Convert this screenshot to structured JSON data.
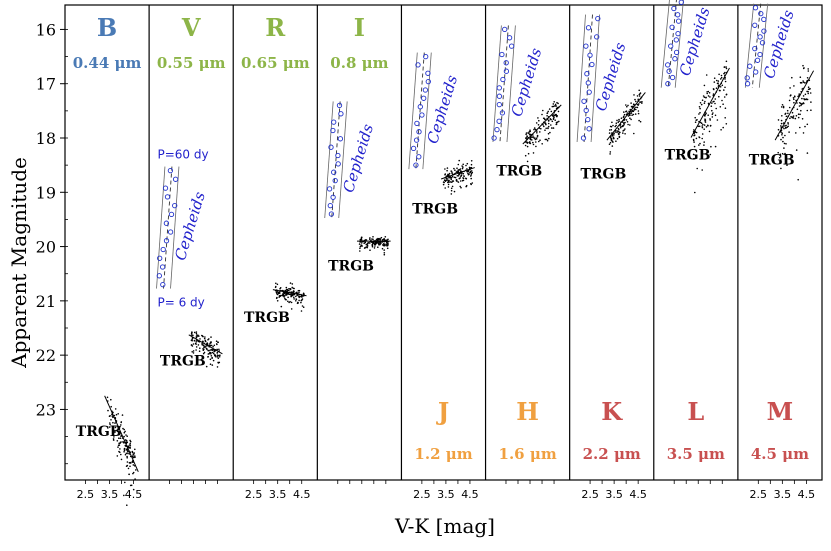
{
  "chart_data": {
    "type": "scatter",
    "ylabel": "Apparent Magnitude",
    "xlabel": "V-K [mag]",
    "y_axis_inverted": true,
    "ylim": [
      15.55,
      24.3
    ],
    "yticks": [
      16,
      17,
      18,
      19,
      20,
      21,
      22,
      23
    ],
    "xticks": [
      "2.5",
      "3.5",
      "4.5"
    ],
    "xlim": [
      1.9,
      4.9
    ],
    "panels": [
      {
        "band": "B",
        "wavelength": "0.44 μm",
        "label_pos": "top",
        "color": "#4a7ab5",
        "trgb": {
          "label": "TRGB",
          "mag": 23.45,
          "color_range": [
            3.4,
            4.6
          ],
          "tilt": 1.0,
          "scatter": 0.16
        },
        "trgb_label_mag": 23.4
      },
      {
        "band": "V",
        "wavelength": "0.55 μm",
        "label_pos": "top",
        "color": "#8db548",
        "trgb": {
          "label": "TRGB",
          "mag": 21.8,
          "color_range": [
            3.4,
            4.6
          ],
          "tilt": 0.25,
          "scatter": 0.08
        },
        "trgb_label_mag": 22.1,
        "cepheids": {
          "label": "Cepheids",
          "mag_bright": 18.6,
          "mag_faint": 20.7,
          "period_long": "P=60 dy",
          "period_short": "P= 6 dy"
        }
      },
      {
        "band": "R",
        "wavelength": "0.65 μm",
        "label_pos": "top",
        "color": "#8db548",
        "trgb": {
          "label": "TRGB",
          "mag": 20.85,
          "color_range": [
            3.4,
            4.6
          ],
          "tilt": 0.08,
          "scatter": 0.06
        },
        "trgb_label_mag": 21.3
      },
      {
        "band": "I",
        "wavelength": "0.8 μm",
        "label_pos": "top",
        "color": "#8db548",
        "trgb": {
          "label": "TRGB",
          "mag": 19.9,
          "color_range": [
            3.4,
            4.6
          ],
          "tilt": 0.0,
          "scatter": 0.04
        },
        "trgb_label_mag": 20.35,
        "cepheids": {
          "label": "Cepheids",
          "mag_bright": 17.4,
          "mag_faint": 19.4
        }
      },
      {
        "band": "J",
        "wavelength": "1.2 μm",
        "label_pos": "bottom",
        "color": "#f0a040",
        "trgb": {
          "label": "TRGB",
          "mag": 18.65,
          "color_range": [
            3.4,
            4.6
          ],
          "tilt": -0.15,
          "scatter": 0.08
        },
        "trgb_label_mag": 19.3,
        "cepheids": {
          "label": "Cepheids",
          "mag_bright": 16.5,
          "mag_faint": 18.5
        }
      },
      {
        "band": "H",
        "wavelength": "1.6 μm",
        "label_pos": "bottom",
        "color": "#f0a040",
        "trgb": {
          "label": "TRGB",
          "mag": 17.75,
          "color_range": [
            3.3,
            4.7
          ],
          "tilt": -0.45,
          "scatter": 0.1
        },
        "trgb_label_mag": 18.6,
        "cepheids": {
          "label": "Cepheids",
          "mag_bright": 16.0,
          "mag_faint": 18.0
        }
      },
      {
        "band": "K",
        "wavelength": "2.2 μm",
        "label_pos": "bottom",
        "color": "#c85050",
        "trgb": {
          "label": "TRGB",
          "mag": 17.6,
          "color_range": [
            3.3,
            4.7
          ],
          "tilt": -0.55,
          "scatter": 0.1
        },
        "trgb_label_mag": 18.65,
        "cepheids": {
          "label": "Cepheids",
          "mag_bright": 15.8,
          "mag_faint": 18.0
        }
      },
      {
        "band": "L",
        "wavelength": "3.5 μm",
        "label_pos": "bottom",
        "color": "#c85050",
        "trgb": {
          "label": "TRGB",
          "mag": 17.35,
          "color_range": [
            3.3,
            4.7
          ],
          "tilt": -0.8,
          "scatter": 0.2
        },
        "trgb_label_mag": 18.3,
        "cepheids": {
          "label": "Cepheids",
          "mag_bright": 15.5,
          "mag_faint": 17.0
        }
      },
      {
        "band": "M",
        "wavelength": "4.5 μm",
        "label_pos": "bottom",
        "color": "#c85050",
        "trgb": {
          "label": "TRGB",
          "mag": 17.4,
          "color_range": [
            3.3,
            4.7
          ],
          "tilt": -0.8,
          "scatter": 0.22
        },
        "trgb_label_mag": 18.4,
        "cepheids": {
          "label": "Cepheids",
          "mag_bright": 15.6,
          "mag_faint": 17.0
        }
      }
    ],
    "xtick_panels": [
      0,
      2,
      4,
      6,
      8
    ]
  }
}
